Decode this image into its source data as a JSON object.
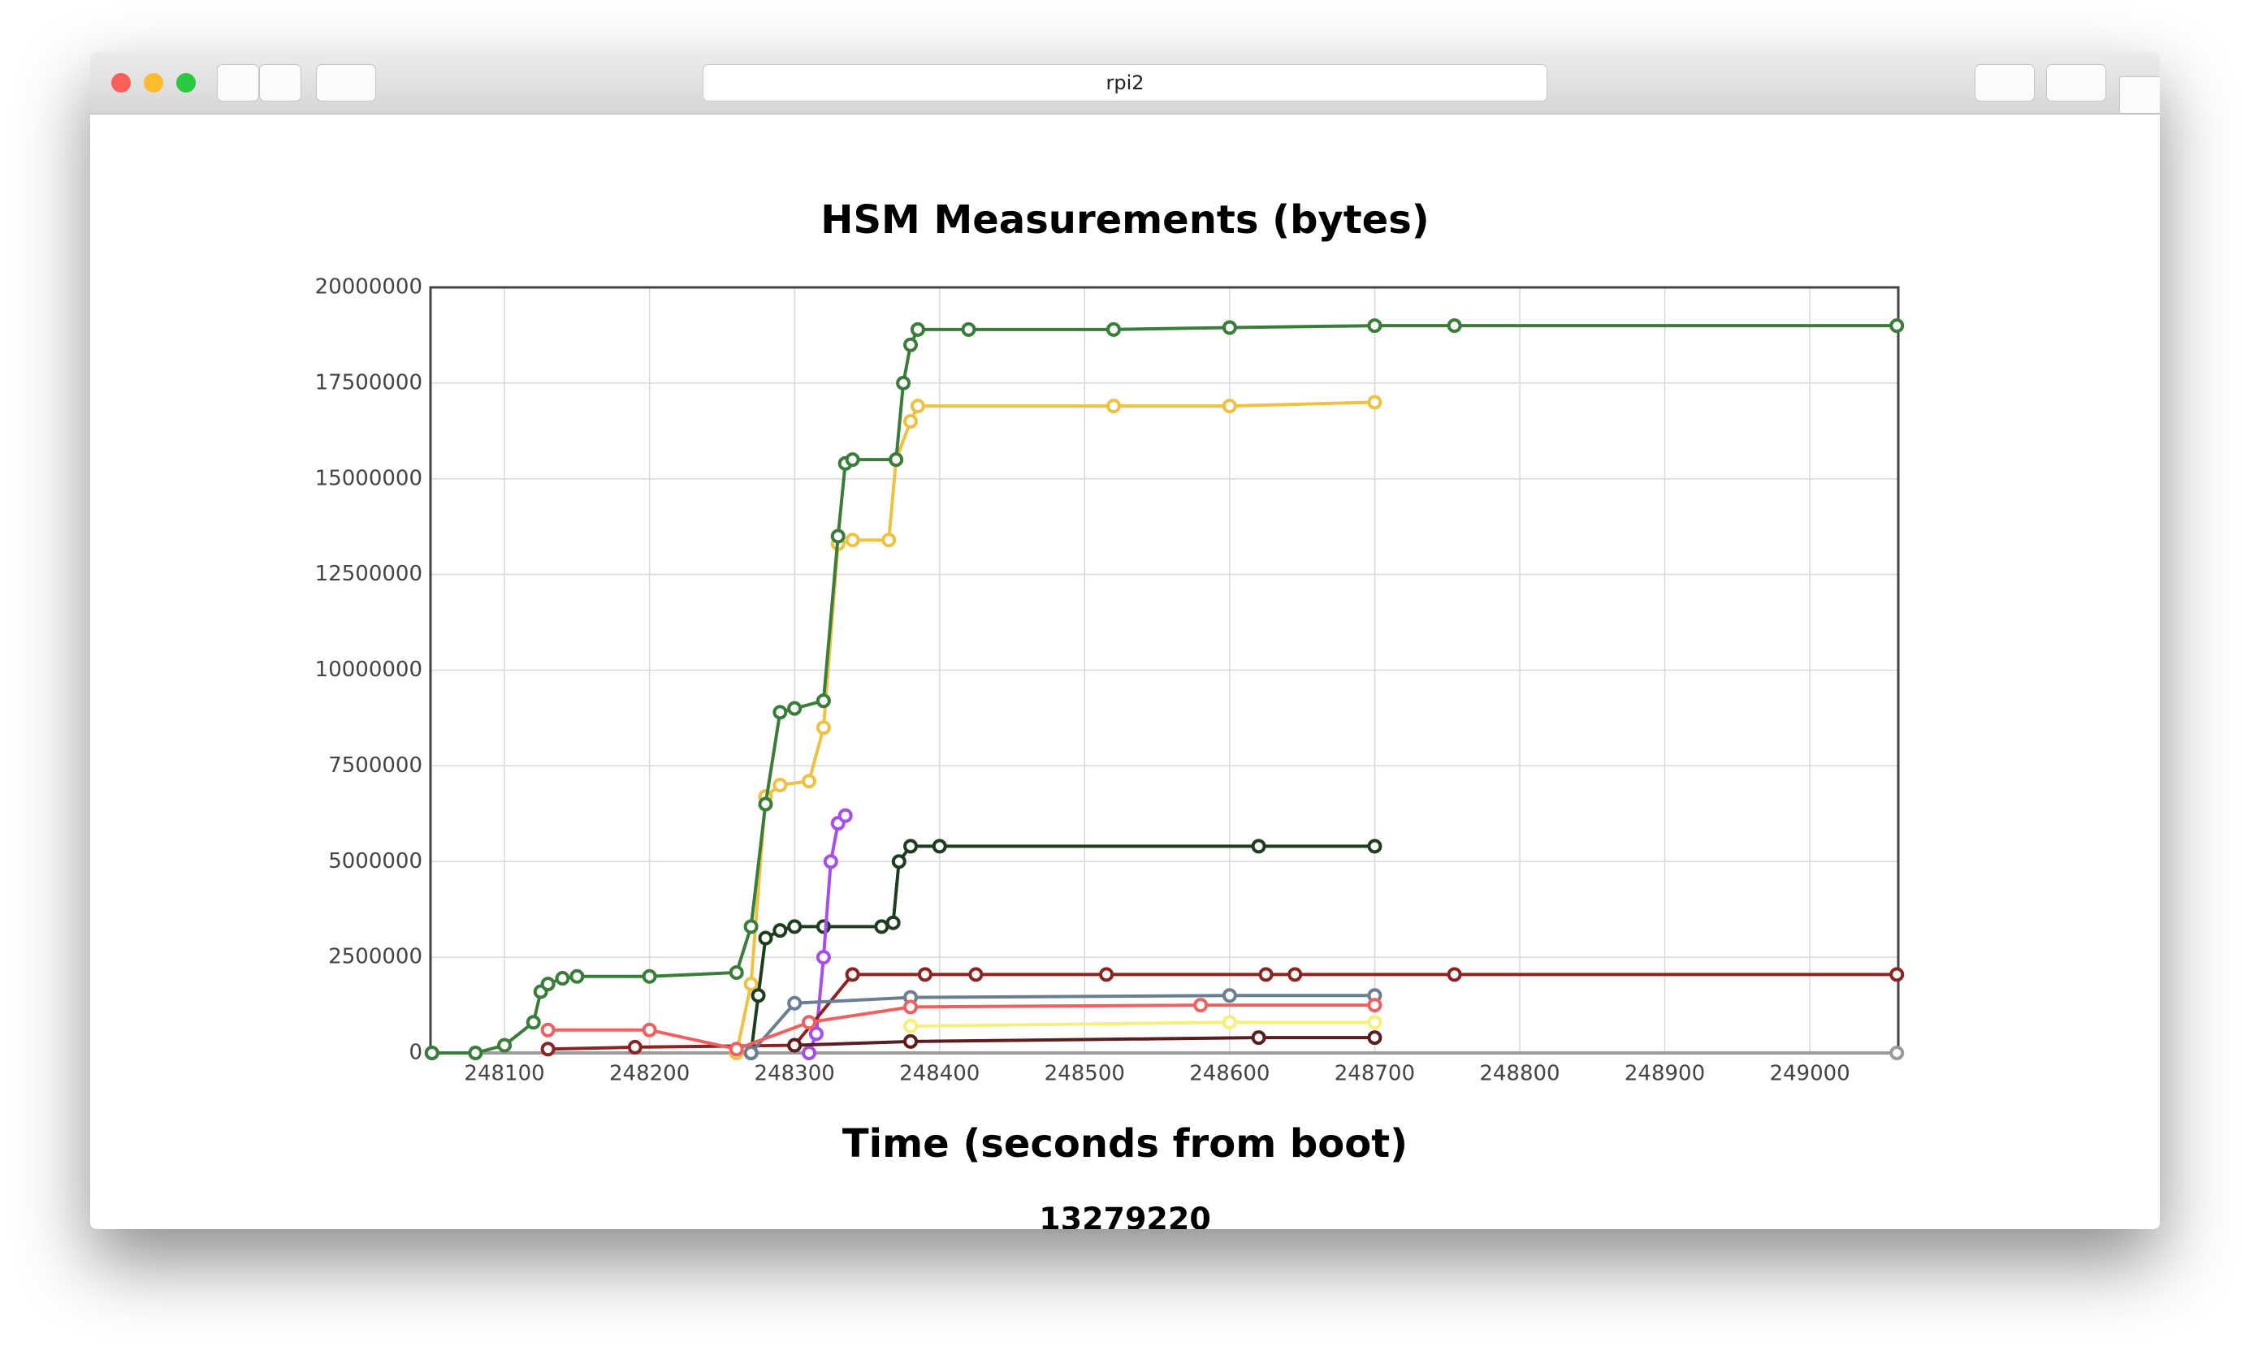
{
  "browser": {
    "tab_title": "rpi2"
  },
  "chart_data": {
    "type": "line",
    "title": "HSM Measurements (bytes)",
    "x_label": "Time (seconds from boot)",
    "xlim": [
      248049,
      249061
    ],
    "xticks": [
      248100,
      248200,
      248300,
      248400,
      248500,
      248600,
      248700,
      248800,
      248900,
      249000
    ],
    "ylim": [
      0,
      20000000
    ],
    "yticks": [
      0,
      2500000,
      5000000,
      7500000,
      10000000,
      12500000,
      15000000,
      17500000,
      20000000
    ],
    "grid": true,
    "series": [
      {
        "color": "#9a9a9a",
        "x": [
          248050,
          249060
        ],
        "values": [
          0,
          0
        ]
      },
      {
        "color": "#f0c040",
        "x": [
          248260,
          248270,
          248280,
          248290,
          248310,
          248320,
          248330,
          248340,
          248365,
          248370,
          248380,
          248385,
          248520,
          248600,
          248700
        ],
        "values": [
          0,
          1800000,
          6700000,
          7000000,
          7100000,
          8500000,
          13300000,
          13400000,
          13400000,
          15500000,
          16500000,
          16900000,
          16900000,
          16900000,
          17000000
        ]
      },
      {
        "color": "#3a7d3a",
        "x": [
          248050,
          248080,
          248100,
          248120,
          248125,
          248130,
          248140,
          248150,
          248200,
          248260,
          248270,
          248280,
          248290,
          248300,
          248320,
          248330,
          248335,
          248340,
          248370,
          248375,
          248380,
          248385,
          248420,
          248520,
          248600,
          248700,
          248755,
          249060
        ],
        "values": [
          0,
          0,
          200000,
          800000,
          1600000,
          1800000,
          1950000,
          2000000,
          2000000,
          2100000,
          3300000,
          6500000,
          8900000,
          9000000,
          9200000,
          13500000,
          15400000,
          15500000,
          15500000,
          17500000,
          18500000,
          18900000,
          18900000,
          18900000,
          18950000,
          19000000,
          19000000,
          19000000
        ]
      },
      {
        "color": "#1e3d1e",
        "x": [
          248270,
          248275,
          248280,
          248290,
          248300,
          248320,
          248360,
          248368,
          248372,
          248380,
          248400,
          248620,
          248700
        ],
        "values": [
          0,
          1500000,
          3000000,
          3200000,
          3300000,
          3300000,
          3300000,
          3400000,
          5000000,
          5400000,
          5400000,
          5400000,
          5400000
        ]
      },
      {
        "color": "#a64df2",
        "x": [
          248310,
          248315,
          248320,
          248325,
          248330,
          248335
        ],
        "values": [
          0,
          500000,
          2500000,
          5000000,
          6000000,
          6200000
        ]
      },
      {
        "color": "#8b2323",
        "x": [
          248130,
          248190,
          248300,
          248340,
          248390,
          248425,
          248515,
          248625,
          248645,
          248755,
          249060
        ],
        "values": [
          100000,
          150000,
          200000,
          2050000,
          2050000,
          2050000,
          2050000,
          2050000,
          2050000,
          2050000,
          2050000
        ]
      },
      {
        "color": "#6a7f93",
        "x": [
          248270,
          248300,
          248380,
          248600,
          248700
        ],
        "values": [
          0,
          1300000,
          1450000,
          1500000,
          1500000
        ]
      },
      {
        "color": "#f06060",
        "x": [
          248130,
          248200,
          248260,
          248310,
          248380,
          248580,
          248700
        ],
        "values": [
          600000,
          600000,
          100000,
          800000,
          1200000,
          1250000,
          1250000
        ]
      },
      {
        "color": "#f5f07a",
        "x": [
          248380,
          248600,
          248700
        ],
        "values": [
          700000,
          800000,
          800000
        ]
      },
      {
        "color": "#5a1e1e",
        "x": [
          248300,
          248380,
          248620,
          248700
        ],
        "values": [
          200000,
          300000,
          400000,
          400000
        ]
      }
    ]
  },
  "footer_value": 13279220
}
